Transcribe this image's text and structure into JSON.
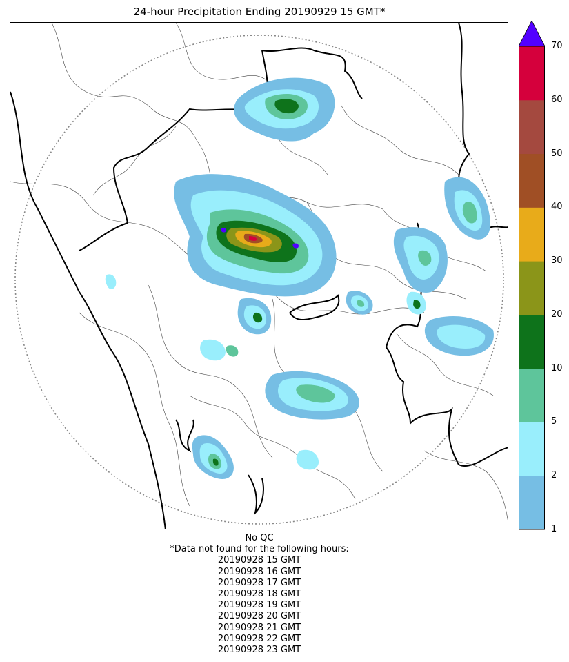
{
  "title": "24-hour Precipitation Ending 20190929 15 GMT*",
  "colorbar": {
    "ticks": [
      "1",
      "2",
      "5",
      "10",
      "20",
      "30",
      "40",
      "50",
      "60",
      "70"
    ],
    "colors": [
      "#76bee4",
      "#99eefc",
      "#5ec59b",
      "#0e731b",
      "#8b9519",
      "#e8ab1a",
      "#a04f25",
      "#a4493f",
      "#d5003c"
    ],
    "extend_color": "#5200ff"
  },
  "map": {
    "features": [
      "radar-range-ring",
      "state-boundaries",
      "district-boundaries",
      "coastline",
      "precipitation-contours"
    ]
  },
  "footer": {
    "qc": "No QC",
    "missing_header": "*Data not found for the following hours:",
    "missing_hours": [
      "20190928 15 GMT",
      "20190928 16 GMT",
      "20190928 17 GMT",
      "20190928 18 GMT",
      "20190928 19 GMT",
      "20190928 20 GMT",
      "20190928 21 GMT",
      "20190928 22 GMT",
      "20190928 23 GMT"
    ]
  }
}
